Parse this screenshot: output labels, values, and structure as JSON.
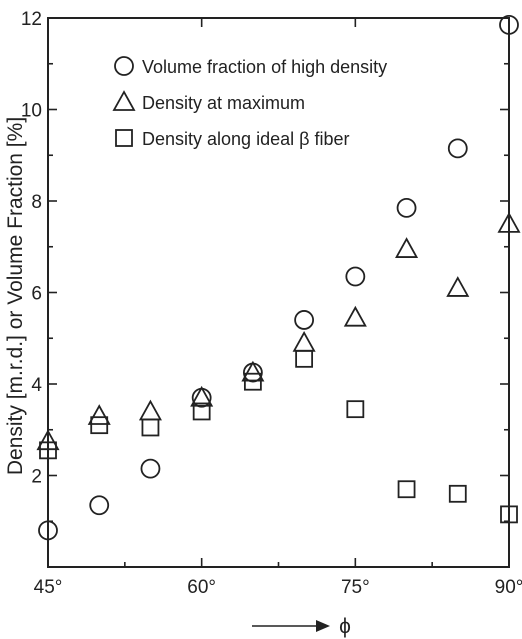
{
  "chart_data": {
    "type": "scatter",
    "x_axis": {
      "range": [
        45,
        90
      ],
      "ticks": [
        45,
        60,
        75,
        90
      ],
      "tick_labels": [
        "45°",
        "60°",
        "75°",
        "90°"
      ],
      "label": "ϕ",
      "label_arrow": "→"
    },
    "y_axis": {
      "range": [
        0,
        12
      ],
      "ticks": [
        2,
        4,
        6,
        8,
        10,
        12
      ],
      "tick_labels": [
        "2",
        "4",
        "6",
        "8",
        "10",
        "12"
      ],
      "label": "Density [m.r.d.] or Volume Fraction [%]"
    },
    "legend_position": "top-right",
    "series": [
      {
        "name": "Volume fraction of high density",
        "marker": "circle",
        "points": [
          [
            45,
            0.8
          ],
          [
            50,
            1.35
          ],
          [
            55,
            2.15
          ],
          [
            60,
            3.7
          ],
          [
            65,
            4.25
          ],
          [
            70,
            5.4
          ],
          [
            75,
            6.35
          ],
          [
            80,
            7.85
          ],
          [
            85,
            9.15
          ],
          [
            90,
            11.85
          ]
        ]
      },
      {
        "name": "Density at maximum",
        "marker": "triangle",
        "points": [
          [
            45,
            2.75
          ],
          [
            50,
            3.3
          ],
          [
            55,
            3.4
          ],
          [
            60,
            3.7
          ],
          [
            65,
            4.25
          ],
          [
            70,
            4.9
          ],
          [
            75,
            5.45
          ],
          [
            80,
            6.95
          ],
          [
            85,
            6.1
          ],
          [
            90,
            7.5
          ]
        ]
      },
      {
        "name": "Density along ideal β fiber",
        "marker": "square",
        "points": [
          [
            45,
            2.55
          ],
          [
            50,
            3.1
          ],
          [
            55,
            3.05
          ],
          [
            60,
            3.4
          ],
          [
            65,
            4.05
          ],
          [
            70,
            4.55
          ],
          [
            75,
            3.45
          ],
          [
            80,
            1.7
          ],
          [
            85,
            1.6
          ],
          [
            90,
            1.15
          ]
        ]
      }
    ]
  }
}
